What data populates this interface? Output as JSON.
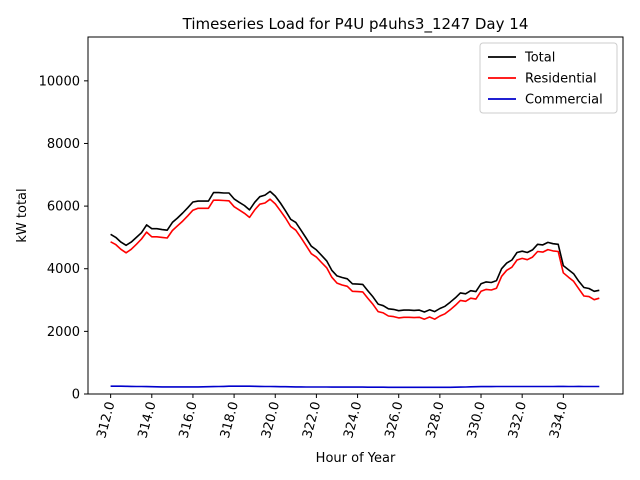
{
  "chart_data": {
    "type": "line",
    "title": "Timeseries Load for P4U p4uhs3_1247  Day 14",
    "xlabel": "Hour of Year",
    "ylabel": "kW total",
    "xlim": [
      310.9,
      336.9
    ],
    "ylim": [
      0,
      11400
    ],
    "xticks": [
      "312.0",
      "314.0",
      "316.0",
      "318.0",
      "320.0",
      "322.0",
      "324.0",
      "326.0",
      "328.0",
      "330.0",
      "332.0",
      "334.0"
    ],
    "xtick_values": [
      312,
      314,
      316,
      318,
      320,
      322,
      324,
      326,
      328,
      330,
      332,
      334
    ],
    "yticks": [
      "0",
      "2000",
      "4000",
      "6000",
      "8000",
      "10000"
    ],
    "ytick_values": [
      0,
      2000,
      4000,
      6000,
      8000,
      10000
    ],
    "legend_position": "upper-right",
    "x": [
      312.0,
      312.25,
      312.5,
      312.75,
      313.0,
      313.25,
      313.5,
      313.75,
      314.0,
      314.25,
      314.5,
      314.75,
      315.0,
      315.25,
      315.5,
      315.75,
      316.0,
      316.25,
      316.5,
      316.75,
      317.0,
      317.25,
      317.5,
      317.75,
      318.0,
      318.25,
      318.5,
      318.75,
      319.0,
      319.25,
      319.5,
      319.75,
      320.0,
      320.25,
      320.5,
      320.75,
      321.0,
      321.25,
      321.5,
      321.75,
      322.0,
      322.25,
      322.5,
      322.75,
      323.0,
      323.25,
      323.5,
      323.75,
      324.0,
      324.25,
      324.5,
      324.75,
      325.0,
      325.25,
      325.5,
      325.75,
      326.0,
      326.25,
      326.5,
      326.75,
      327.0,
      327.25,
      327.5,
      327.75,
      328.0,
      328.25,
      328.5,
      328.75,
      329.0,
      329.25,
      329.5,
      329.75,
      330.0,
      330.25,
      330.5,
      330.75,
      331.0,
      331.25,
      331.5,
      331.75,
      332.0,
      332.25,
      332.5,
      332.75,
      333.0,
      333.25,
      333.5,
      333.75,
      334.0,
      334.25,
      334.5,
      334.75,
      335.0,
      335.25,
      335.5,
      335.75
    ],
    "series": [
      {
        "name": "Total",
        "color": "#000000",
        "values": [
          5100,
          5000,
          4850,
          4750,
          4850,
          5000,
          5150,
          5400,
          5280,
          5280,
          5250,
          5230,
          5480,
          5620,
          5780,
          5950,
          6130,
          6160,
          6160,
          6160,
          6430,
          6430,
          6420,
          6420,
          6230,
          6120,
          6020,
          5880,
          6120,
          6300,
          6350,
          6470,
          6320,
          6100,
          5850,
          5580,
          5480,
          5230,
          4980,
          4720,
          4600,
          4430,
          4250,
          3950,
          3770,
          3720,
          3680,
          3520,
          3510,
          3500,
          3300,
          3100,
          2870,
          2820,
          2720,
          2700,
          2660,
          2680,
          2680,
          2670,
          2680,
          2620,
          2690,
          2630,
          2730,
          2800,
          2930,
          3070,
          3230,
          3200,
          3300,
          3270,
          3520,
          3580,
          3560,
          3620,
          4000,
          4180,
          4280,
          4520,
          4560,
          4520,
          4600,
          4780,
          4760,
          4840,
          4800,
          4780,
          4100,
          3970,
          3840,
          3600,
          3400,
          3370,
          3280,
          3310
        ]
      },
      {
        "name": "Residential",
        "color": "#ff0000",
        "values": [
          4860,
          4770,
          4620,
          4510,
          4620,
          4780,
          4950,
          5170,
          5020,
          5020,
          5000,
          4980,
          5220,
          5370,
          5520,
          5690,
          5870,
          5930,
          5930,
          5930,
          6190,
          6190,
          6180,
          6170,
          5980,
          5880,
          5770,
          5640,
          5880,
          6060,
          6100,
          6220,
          6070,
          5850,
          5620,
          5350,
          5230,
          4990,
          4740,
          4480,
          4370,
          4200,
          4030,
          3730,
          3540,
          3480,
          3440,
          3280,
          3270,
          3260,
          3060,
          2860,
          2630,
          2590,
          2490,
          2470,
          2430,
          2450,
          2450,
          2440,
          2450,
          2390,
          2460,
          2390,
          2490,
          2560,
          2690,
          2830,
          2990,
          2960,
          3060,
          3030,
          3280,
          3340,
          3320,
          3380,
          3760,
          3950,
          4050,
          4280,
          4330,
          4290,
          4370,
          4550,
          4530,
          4610,
          4570,
          4550,
          3870,
          3730,
          3600,
          3360,
          3130,
          3110,
          3010,
          3060
        ]
      },
      {
        "name": "Commercial",
        "color": "#0000cc",
        "values": [
          250,
          250,
          248,
          245,
          242,
          240,
          238,
          235,
          232,
          230,
          228,
          228,
          228,
          228,
          228,
          228,
          228,
          228,
          230,
          232,
          235,
          238,
          242,
          248,
          250,
          250,
          250,
          248,
          245,
          242,
          240,
          238,
          236,
          234,
          232,
          230,
          228,
          226,
          225,
          224,
          224,
          222,
          222,
          220,
          220,
          220,
          220,
          220,
          220,
          220,
          218,
          218,
          216,
          216,
          215,
          215,
          215,
          215,
          215,
          215,
          215,
          215,
          215,
          215,
          215,
          215,
          215,
          218,
          220,
          225,
          230,
          232,
          235,
          235,
          236,
          238,
          240,
          240,
          240,
          240,
          240,
          240,
          240,
          240,
          238,
          238,
          240,
          242,
          242,
          240,
          240,
          242,
          240,
          240,
          238,
          238
        ]
      }
    ]
  }
}
